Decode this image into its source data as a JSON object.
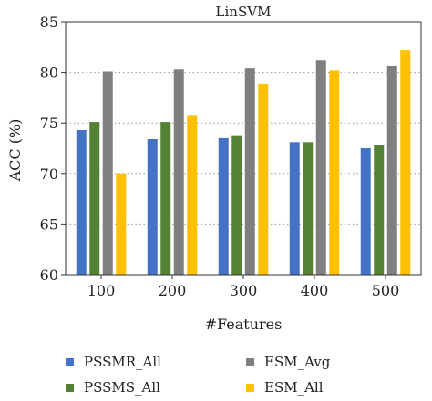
{
  "chart_data": {
    "type": "bar",
    "title": "LinSVM",
    "xlabel": "#Features",
    "ylabel": "ACC (%)",
    "categories": [
      "100",
      "200",
      "300",
      "400",
      "500"
    ],
    "ylim": [
      60,
      85
    ],
    "yticks": [
      60,
      65,
      70,
      75,
      80,
      85
    ],
    "grid": "horizontal-dotted",
    "legend_position": "bottom",
    "series": [
      {
        "name": "PSSMR_All",
        "color": "#4472c4",
        "values": [
          74.3,
          73.4,
          73.5,
          73.1,
          72.5
        ]
      },
      {
        "name": "PSSMS_All",
        "color": "#548235",
        "values": [
          75.1,
          75.1,
          73.7,
          73.1,
          72.8
        ]
      },
      {
        "name": "ESM_Avg",
        "color": "#7f7f7f",
        "values": [
          80.1,
          80.3,
          80.4,
          81.2,
          80.6
        ]
      },
      {
        "name": "ESM_All",
        "color": "#ffc000",
        "values": [
          70.0,
          75.7,
          78.9,
          80.2,
          82.2
        ]
      }
    ]
  }
}
